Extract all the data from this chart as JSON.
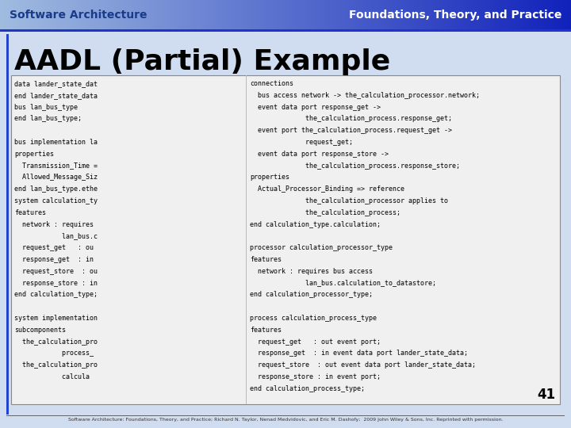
{
  "header_left": "Software Architecture",
  "header_right": "Foundations, Theory, and Practice",
  "title": "AADL (Partial) Example",
  "header_text_left_color": "#1a3a8a",
  "header_text_right_color": "#ffffff",
  "slide_bg": "#d0dcf0",
  "title_color": "#000000",
  "page_number": "41",
  "footer_text": "Software Architecture: Foundations, Theory, and Practice; Richard N. Taylor, Nenad Medvidovic, and Eric M. Dashofy;  2009 John Wiley & Sons, Inc. Reprinted with permission.",
  "left_col_lines": [
    "data lander_state_dat",
    "end lander_state_data",
    "bus lan_bus_type",
    "end lan_bus_type;",
    "",
    "bus implementation la",
    "properties",
    "  Transmission_Time =",
    "  Allowed_Message_Siz",
    "end lan_bus_type.ethe",
    "system calculation_ty",
    "features",
    "  network : requires",
    "            lan_bus.c",
    "  request_get   : ou",
    "  response_get  : in",
    "  request_store  : ou",
    "  response_store : in",
    "end calculation_type;",
    "",
    "system implementation",
    "subcomponents",
    "  the_calculation_pro",
    "            process_",
    "  the_calculation_pro",
    "            calcula"
  ],
  "right_col_lines": [
    "connections",
    "  bus access network -> the_calculation_processor.network;",
    "  event data port response_get ->",
    "              the_calculation_process.response_get;",
    "  event port the_calculation_process.request_get ->",
    "              request_get;",
    "  event data port response_store ->",
    "              the_calculation_process.response_store;",
    "properties",
    "  Actual_Processor_Binding => reference",
    "              the_calculation_processor applies to",
    "              the_calculation_process;",
    "end calculation_type.calculation;",
    "",
    "processor calculation_processor_type",
    "features",
    "  network : requires bus access",
    "              lan_bus.calculation_to_datastore;",
    "end calculation_processor_type;",
    "",
    "process calculation_process_type",
    "features",
    "  request_get   : out event port;",
    "  response_get  : in event data port lander_state_data;",
    "  request_store  : out event data port lander_state_data;",
    "  response_store : in event port;",
    "end calculation_process_type;"
  ]
}
